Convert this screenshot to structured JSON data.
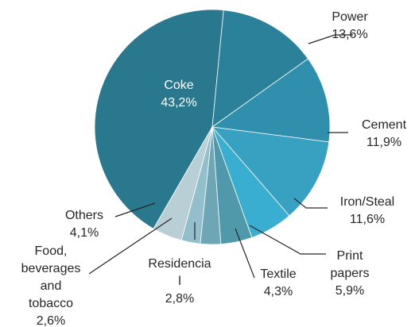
{
  "chart_data": {
    "type": "pie",
    "title": "",
    "slices": [
      {
        "label": "Coke",
        "label_lines": [
          "Coke"
        ],
        "value_label": "43,2%",
        "value": 43.2,
        "color": "#2a788d"
      },
      {
        "label": "Power",
        "label_lines": [
          "Power"
        ],
        "value_label": "13,6%",
        "value": 13.6,
        "color": "#2b8199"
      },
      {
        "label": "Cement",
        "label_lines": [
          "Cement"
        ],
        "value_label": "11,9%",
        "value": 11.9,
        "color": "#2f8fac"
      },
      {
        "label": "Iron/Steal",
        "label_lines": [
          "Iron/Steal"
        ],
        "value_label": "11,6%",
        "value": 11.6,
        "color": "#38a0c0"
      },
      {
        "label": "Print papers",
        "label_lines": [
          "Print",
          "papers"
        ],
        "value_label": "5,9%",
        "value": 5.9,
        "color": "#3aaed1"
      },
      {
        "label": "Textile",
        "label_lines": [
          "Textile"
        ],
        "value_label": "4,3%",
        "value": 4.3,
        "color": "#5099ab"
      },
      {
        "label": "Residencial",
        "label_lines": [
          "Residencia",
          "l"
        ],
        "value_label": "2,8%",
        "value": 2.8,
        "color": "#6fa6b6"
      },
      {
        "label": "Food, beverages and tobacco",
        "label_lines": [
          "Food,",
          "beverages",
          "and",
          "tobacco"
        ],
        "value_label": "2,6%",
        "value": 2.6,
        "color": "#93bfcc"
      },
      {
        "label": "Others",
        "label_lines": [
          "Others"
        ],
        "value_label": "4,1%",
        "value": 4.1,
        "color": "#b9cfd6"
      }
    ],
    "start_angle_deg": 210,
    "direction": "clockwise",
    "legend": "none",
    "data_labels": "category and percentage"
  }
}
